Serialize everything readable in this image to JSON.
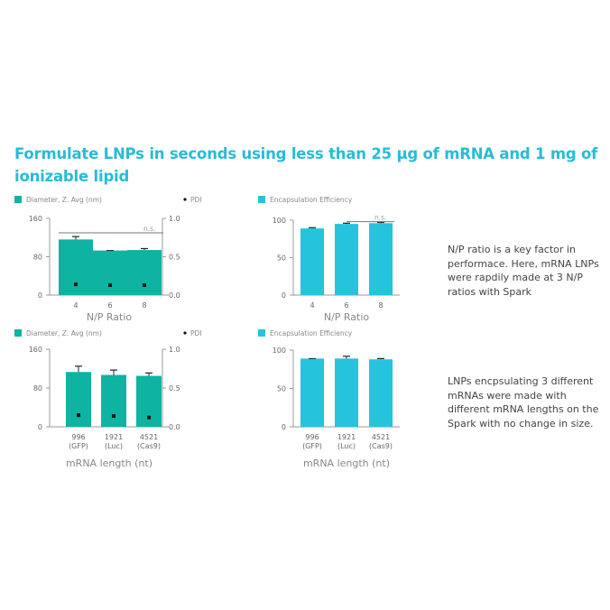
{
  "headline_line1": "Formulate LNPs  in seconds using less than 25 µg of mRNA and 1 mg of",
  "headline_line2": "ionizable lipid",
  "notes": {
    "np": "N/P ratio is a key factor in performace. Here, mRNA LNPs were rapdily made at 3 N/P ratios with Spark",
    "length": "LNPs encpsulating 3 different mRNAs were made with different mRNA lengths on the Spark with no change in size."
  },
  "colors": {
    "teal": "#0fb3a2",
    "cyan": "#26c3dc",
    "headline": "#26bcd7",
    "axis": "#9a9a9a",
    "text": "#666666"
  },
  "chart_data": [
    {
      "type": "bar",
      "legend": [
        "Diameter, Z. Avg (nm)",
        "PDI"
      ],
      "categories": [
        [
          "4"
        ],
        [
          "6"
        ],
        [
          "8"
        ]
      ],
      "xlabel": "N/P Ratio",
      "yticks": [
        "0",
        "80",
        "160"
      ],
      "ylim": [
        0,
        160
      ],
      "y2ticks": [
        "0.0",
        "0.5",
        "1.0"
      ],
      "y2lim": [
        0,
        1
      ],
      "series": [
        {
          "name": "Diameter, Z. Avg (nm)",
          "axis": "left",
          "kind": "bar",
          "values": [
            116,
            93,
            94
          ],
          "errors": [
            6,
            0,
            3
          ]
        },
        {
          "name": "PDI",
          "axis": "right",
          "kind": "point",
          "values": [
            0.14,
            0.13,
            0.13
          ]
        }
      ],
      "significance": {
        "label": "n.s.",
        "from": 0,
        "to": 2,
        "y": 130
      }
    },
    {
      "type": "bar",
      "legend": [
        "Encapsulation Efficiency"
      ],
      "categories": [
        [
          "4"
        ],
        [
          "6"
        ],
        [
          "8"
        ]
      ],
      "xlabel": "N/P Ratio",
      "yticks": [
        "0",
        "50",
        "100"
      ],
      "ylim": [
        0,
        100
      ],
      "series": [
        {
          "name": "Encapsulation Efficiency",
          "axis": "left",
          "kind": "bar",
          "values": [
            89,
            95,
            96
          ],
          "errors": [
            1,
            1,
            1
          ]
        }
      ],
      "significance": {
        "label": "n.s.",
        "from": 1,
        "to": 2,
        "y": 98
      }
    },
    {
      "type": "bar",
      "legend": [
        "Diameter, Z. Avg (nm)",
        "PDI"
      ],
      "categories": [
        [
          "996",
          "(GFP)"
        ],
        [
          "1921",
          "(Luc)"
        ],
        [
          "4521",
          "(Cas9)"
        ]
      ],
      "xlabel": "mRNA length (nt)",
      "yticks": [
        "0",
        "80",
        "160"
      ],
      "ylim": [
        0,
        160
      ],
      "y2ticks": [
        "0.0",
        "0.5",
        "1.0"
      ],
      "y2lim": [
        0,
        1
      ],
      "series": [
        {
          "name": "Diameter, Z. Avg (nm)",
          "axis": "left",
          "kind": "bar",
          "values": [
            113,
            107,
            105
          ],
          "errors": [
            12,
            10,
            6
          ]
        },
        {
          "name": "PDI",
          "axis": "right",
          "kind": "point",
          "values": [
            0.15,
            0.14,
            0.12
          ]
        }
      ]
    },
    {
      "type": "bar",
      "legend": [
        "Encapsulation Efficiency"
      ],
      "categories": [
        [
          "996",
          "(GFP)"
        ],
        [
          "1921",
          "(Luc)"
        ],
        [
          "4521",
          "(Cas9)"
        ]
      ],
      "xlabel": "mRNA length (nt)",
      "yticks": [
        "0",
        "50",
        "100"
      ],
      "ylim": [
        0,
        100
      ],
      "series": [
        {
          "name": "Encapsulation Efficiency",
          "axis": "left",
          "kind": "bar",
          "values": [
            89,
            89,
            88
          ],
          "errors": [
            0,
            3,
            1
          ]
        }
      ]
    }
  ]
}
